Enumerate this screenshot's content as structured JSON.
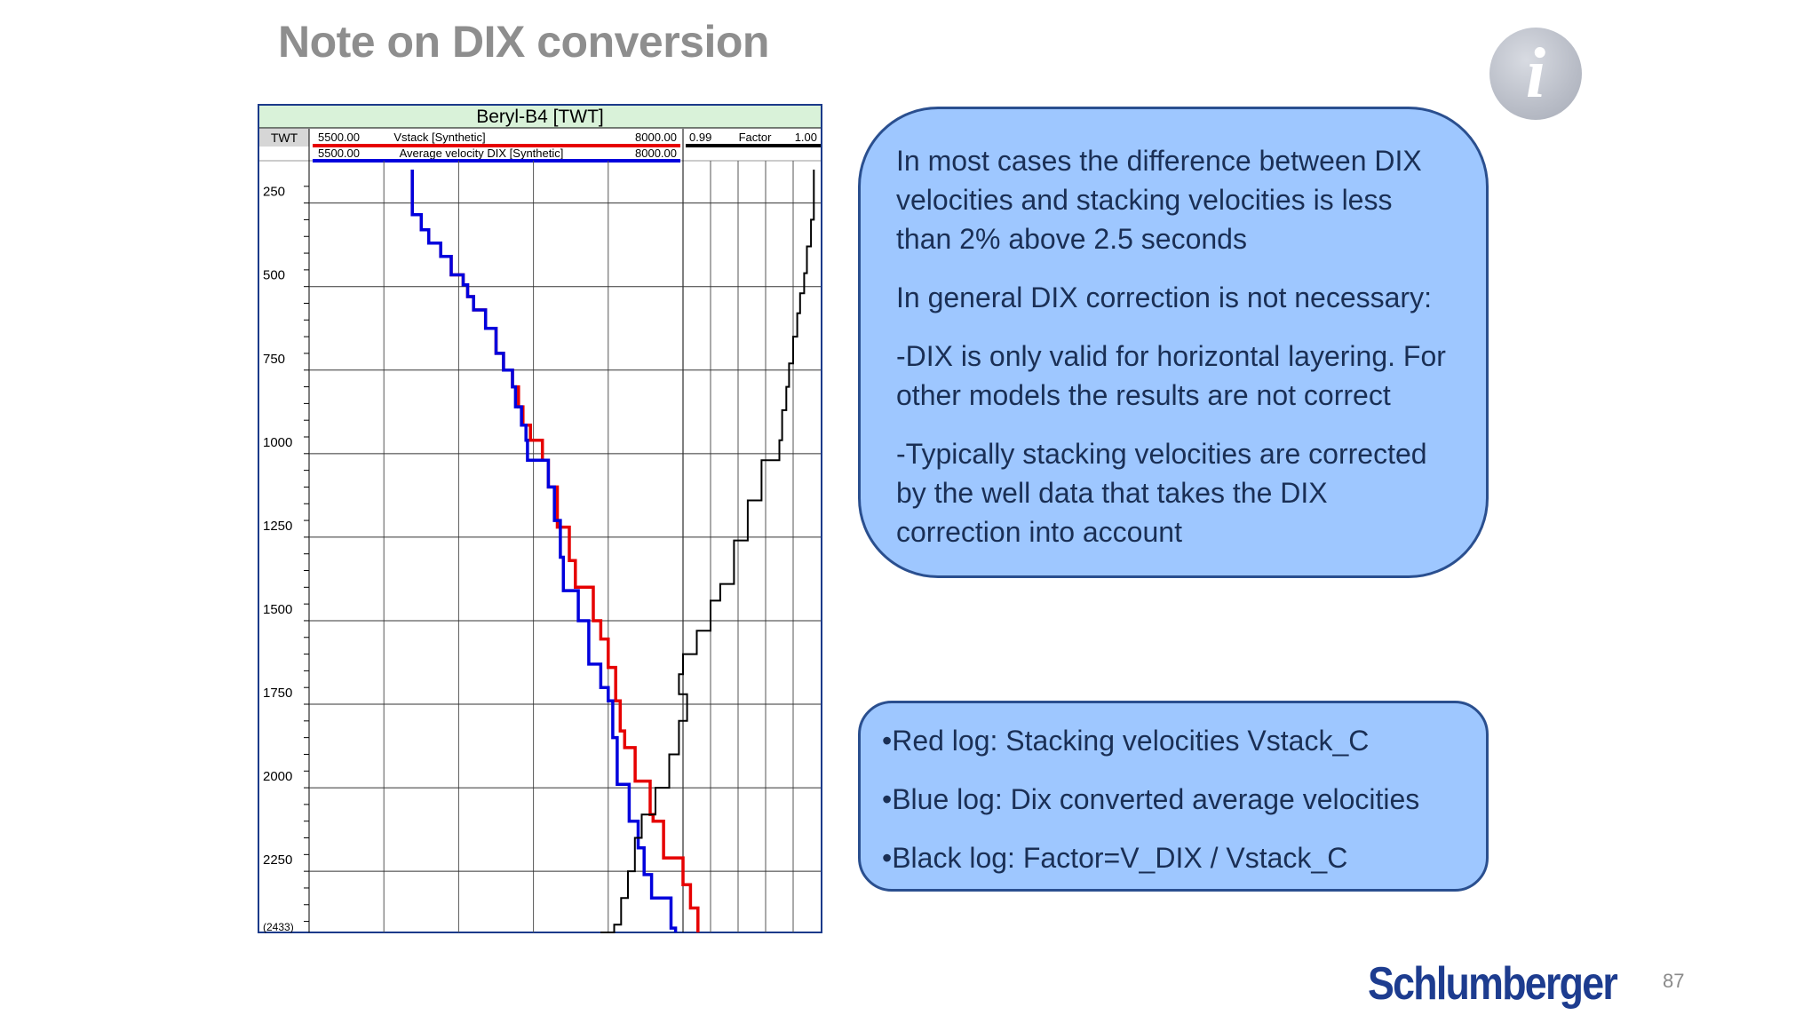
{
  "slide": {
    "title": "Note on DIX conversion",
    "info_icon": "i",
    "page_number": "87",
    "company": "Schlumberger"
  },
  "notes": [
    "In most cases the difference between DIX velocities and stacking velocities is less than 2% above 2.5 seconds",
    "In general DIX correction is not necessary:",
    "-DIX is only valid for horizontal layering. For other models the results are not correct",
    "-Typically stacking velocities are corrected by the well data that takes the DIX correction into account"
  ],
  "legend_notes": [
    "•Red log: Stacking velocities Vstack_C",
    "•Blue log: Dix converted average velocities",
    "•Black log: Factor=V_DIX / Vstack_C"
  ],
  "colors": {
    "red_log": "#e60000",
    "blue_log": "#0000dd",
    "black_log": "#000000",
    "callout_fill": "#9ec7ff",
    "callout_border": "#2a4f8f",
    "header_fill": "#d9f2d9"
  },
  "chart_data": {
    "type": "line",
    "title": "Beryl-B4 [TWT]",
    "depth_column_label": "TWT",
    "y_ticks": [
      "250",
      "500",
      "750",
      "1000",
      "1250",
      "1500",
      "1750",
      "2000",
      "2250",
      "(2433)"
    ],
    "y_tick_values": [
      250,
      500,
      750,
      1000,
      1250,
      1500,
      1750,
      2000,
      2250,
      2433
    ],
    "ylim": [
      150,
      2433
    ],
    "y_inverted": true,
    "velocity_track": {
      "xlim": [
        5500,
        8000
      ],
      "curves": [
        {
          "name": "Vstack [Synthetic]",
          "left_label": "5500.00",
          "right_label": "8000.00",
          "color_key": "red_log",
          "steps": [
            [
              150,
              6190
            ],
            [
              285,
              6250
            ],
            [
              330,
              6300
            ],
            [
              370,
              6380
            ],
            [
              410,
              6450
            ],
            [
              465,
              6530
            ],
            [
              495,
              6560
            ],
            [
              530,
              6600
            ],
            [
              570,
              6680
            ],
            [
              625,
              6750
            ],
            [
              700,
              6800
            ],
            [
              750,
              6860
            ],
            [
              800,
              6900
            ],
            [
              860,
              6930
            ],
            [
              915,
              6980
            ],
            [
              960,
              7060
            ],
            [
              1020,
              7100
            ],
            [
              1100,
              7160
            ],
            [
              1220,
              7240
            ],
            [
              1320,
              7280
            ],
            [
              1400,
              7400
            ],
            [
              1500,
              7450
            ],
            [
              1555,
              7500
            ],
            [
              1640,
              7550
            ],
            [
              1740,
              7580
            ],
            [
              1830,
              7610
            ],
            [
              1880,
              7680
            ],
            [
              1980,
              7780
            ],
            [
              2080,
              7800
            ],
            [
              2100,
              7870
            ],
            [
              2210,
              8000
            ],
            [
              2290,
              8050
            ],
            [
              2360,
              8100
            ],
            [
              2420,
              8100
            ]
          ]
        },
        {
          "name": "Average velocity DIX [Synthetic]",
          "left_label": "5500.00",
          "right_label": "8000.00",
          "color_key": "blue_log",
          "steps": [
            [
              150,
              6190
            ],
            [
              285,
              6250
            ],
            [
              330,
              6300
            ],
            [
              370,
              6380
            ],
            [
              410,
              6450
            ],
            [
              465,
              6530
            ],
            [
              495,
              6560
            ],
            [
              530,
              6600
            ],
            [
              570,
              6680
            ],
            [
              625,
              6750
            ],
            [
              700,
              6800
            ],
            [
              750,
              6860
            ],
            [
              800,
              6880
            ],
            [
              860,
              6920
            ],
            [
              915,
              6950
            ],
            [
              960,
              6960
            ],
            [
              1020,
              7100
            ],
            [
              1100,
              7140
            ],
            [
              1200,
              7180
            ],
            [
              1310,
              7200
            ],
            [
              1410,
              7300
            ],
            [
              1500,
              7370
            ],
            [
              1630,
              7450
            ],
            [
              1700,
              7500
            ],
            [
              1740,
              7530
            ],
            [
              1850,
              7560
            ],
            [
              1990,
              7640
            ],
            [
              2100,
              7700
            ],
            [
              2180,
              7740
            ],
            [
              2260,
              7790
            ],
            [
              2330,
              7920
            ],
            [
              2420,
              7950
            ]
          ]
        }
      ]
    },
    "factor_track": {
      "xlim": [
        0.99,
        1.0
      ],
      "label": "Factor",
      "left_label": "0.99",
      "right_label": "1.00",
      "color_key": "black_log",
      "steps": [
        [
          150,
          0.9995
        ],
        [
          300,
          0.9993
        ],
        [
          380,
          0.999
        ],
        [
          460,
          0.9988
        ],
        [
          520,
          0.9985
        ],
        [
          580,
          0.9983
        ],
        [
          650,
          0.998
        ],
        [
          730,
          0.9977
        ],
        [
          800,
          0.9975
        ],
        [
          870,
          0.9972
        ],
        [
          960,
          0.997
        ],
        [
          1020,
          0.9957
        ],
        [
          1140,
          0.9947
        ],
        [
          1260,
          0.9937
        ],
        [
          1390,
          0.9927
        ],
        [
          1440,
          0.992
        ],
        [
          1530,
          0.991
        ],
        [
          1600,
          0.99
        ],
        [
          1660,
          0.9897
        ],
        [
          1720,
          0.9903
        ],
        [
          1800,
          0.9897
        ],
        [
          1900,
          0.989
        ],
        [
          2000,
          0.988
        ],
        [
          2080,
          0.987
        ],
        [
          2150,
          0.9865
        ],
        [
          2250,
          0.986
        ],
        [
          2330,
          0.9855
        ],
        [
          2410,
          0.985
        ],
        [
          2433,
          0.984
        ]
      ]
    }
  }
}
